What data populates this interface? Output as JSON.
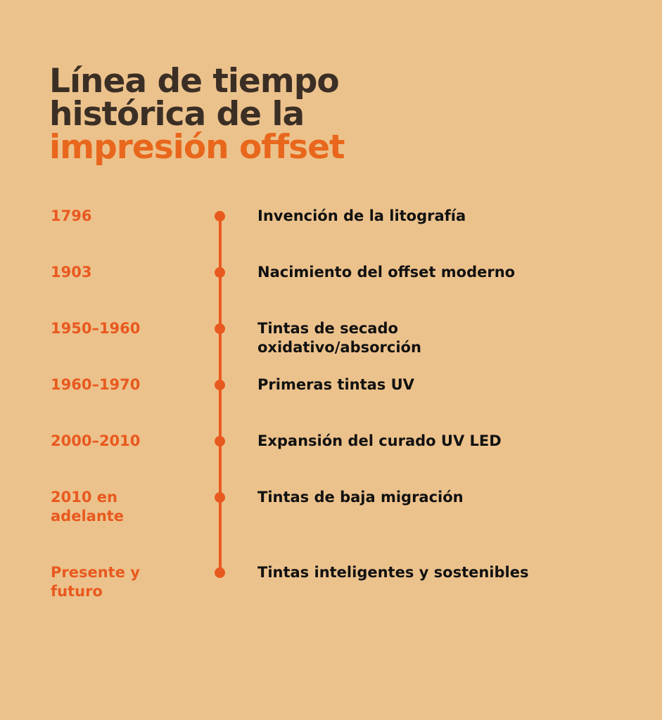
{
  "title": {
    "line1": "Línea de tiempo",
    "line2": "histórica de la",
    "line3": "impresión offset"
  },
  "events": [
    {
      "date": "1796",
      "description": "Invención de la litografía"
    },
    {
      "date": "1903",
      "description": "Nacimiento del offset moderno"
    },
    {
      "date": "1950–1960",
      "description": "Tintas de secado oxidativo/absorción"
    },
    {
      "date": "1960–1970",
      "description": "Primeras tintas UV"
    },
    {
      "date": "2000–2010",
      "description": "Expansión del curado UV LED"
    },
    {
      "date": "2010 en adelante",
      "description": "Tintas de baja migración"
    },
    {
      "date": "Presente y futuro",
      "description": "Tintas inteligentes y sostenibles"
    }
  ],
  "colors": {
    "background": "#ecc28c",
    "title": "#3b2f25",
    "title_accent": "#e8671c",
    "timeline": "#e8591f",
    "description": "#111111"
  }
}
